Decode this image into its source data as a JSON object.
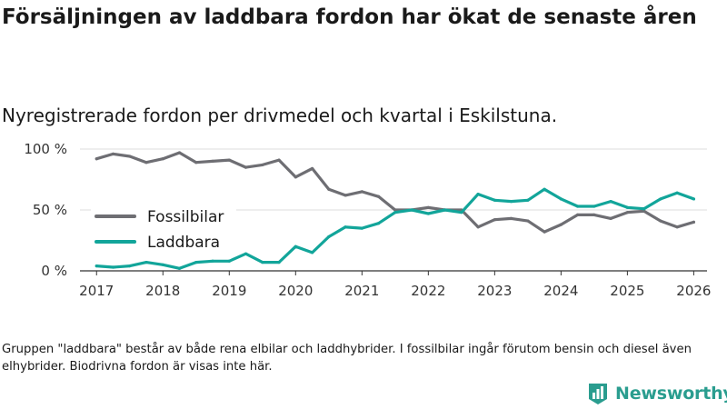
{
  "title": "Försäljningen av laddbara fordon har ökat de senaste åren",
  "subtitle": "Nyregistrerade fordon per drivmedel och kvartal i Eskilstuna.",
  "note": "Gruppen \"laddbara\" består av både rena elbilar och laddhybrider. I fossilbilar ingår förutom bensin och diesel även elhybrider. Biodrivna fordon är visas inte här.",
  "brand": {
    "name": "Newsworthy",
    "icon": "newsworthy-logo-icon",
    "color": "#2a9d8f"
  },
  "chart_data": {
    "type": "line",
    "title": "Försäljningen av laddbara fordon har ökat de senaste åren",
    "subtitle": "Nyregistrerade fordon per drivmedel och kvartal i Eskilstuna.",
    "xlabel": "",
    "ylabel": "",
    "x": [
      2017.0,
      2017.25,
      2017.5,
      2017.75,
      2018.0,
      2018.25,
      2018.5,
      2018.75,
      2019.0,
      2019.25,
      2019.5,
      2019.75,
      2020.0,
      2020.25,
      2020.5,
      2020.75,
      2021.0,
      2021.25,
      2021.5,
      2021.75,
      2022.0,
      2022.25,
      2022.5,
      2022.75,
      2023.0,
      2023.25,
      2023.5,
      2023.75,
      2024.0,
      2024.25,
      2024.5,
      2024.75,
      2025.0,
      2025.25,
      2025.5,
      2025.75,
      2026.0
    ],
    "xlim": [
      2016.75,
      2026.2
    ],
    "xticks": [
      2017,
      2018,
      2019,
      2020,
      2021,
      2022,
      2023,
      2024,
      2025,
      2026
    ],
    "xtick_labels": [
      "2017",
      "2018",
      "2019",
      "2020",
      "2021",
      "2022",
      "2023",
      "2024",
      "2025",
      "2026"
    ],
    "ylim": [
      0,
      100
    ],
    "yticks": [
      0,
      50,
      100
    ],
    "ytick_labels": [
      "0 %",
      "50 %",
      "100 %"
    ],
    "grid": true,
    "legend_position": "left",
    "series": [
      {
        "name": "Fossilbilar",
        "color": "#6e6e73",
        "values": [
          92,
          96,
          94,
          89,
          92,
          97,
          89,
          90,
          91,
          85,
          87,
          91,
          77,
          84,
          67,
          62,
          65,
          61,
          50,
          50,
          52,
          50,
          50,
          36,
          42,
          43,
          41,
          32,
          38,
          46,
          46,
          43,
          48,
          49,
          41,
          36,
          40
        ]
      },
      {
        "name": "Laddbara",
        "color": "#12a59a",
        "values": [
          4,
          3,
          4,
          7,
          5,
          2,
          7,
          8,
          8,
          14,
          7,
          7,
          20,
          15,
          28,
          36,
          35,
          39,
          48,
          50,
          47,
          50,
          48,
          63,
          58,
          57,
          58,
          67,
          59,
          53,
          53,
          57,
          52,
          51,
          59,
          64,
          59
        ]
      }
    ]
  }
}
